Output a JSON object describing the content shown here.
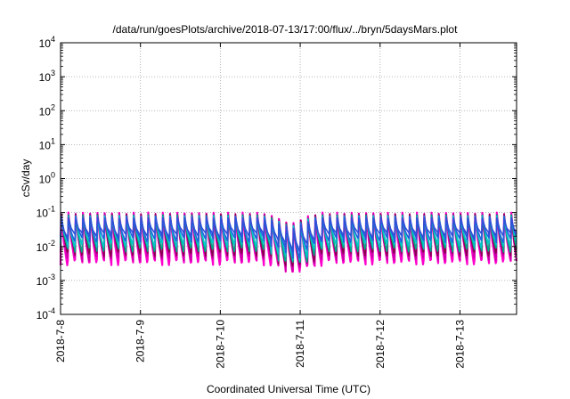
{
  "chart_data": {
    "type": "line",
    "title": "/data/run/goesPlots/archive/2018-07-13/17:00/flux/../bryn/5daysMars.plot",
    "xlabel": "Coordinated Universal Time (UTC)",
    "ylabel": "cSv/day",
    "y_scale": "log",
    "ylim": [
      0.0001,
      10000
    ],
    "y_ticks": [
      {
        "base": "10",
        "exp": "-4",
        "value": 0.0001
      },
      {
        "base": "10",
        "exp": "-3",
        "value": 0.001
      },
      {
        "base": "10",
        "exp": "-2",
        "value": 0.01
      },
      {
        "base": "10",
        "exp": "-1",
        "value": 0.1
      },
      {
        "base": "10",
        "exp": "0",
        "value": 1
      },
      {
        "base": "10",
        "exp": "1",
        "value": 10
      },
      {
        "base": "10",
        "exp": "2",
        "value": 100
      },
      {
        "base": "10",
        "exp": "3",
        "value": 1000
      },
      {
        "base": "10",
        "exp": "4",
        "value": 10000
      }
    ],
    "x_ticks": [
      "2018-7-8",
      "2018-7-9",
      "2018-7-10",
      "2018-7-11",
      "2018-7-12",
      "2018-7-13"
    ],
    "xlim": [
      "2018-07-08",
      "2018-07-13 17:00"
    ],
    "grid": true,
    "grid_style": "dotted",
    "legend": "none",
    "pattern": {
      "teeth_per_day": 11,
      "peak_min": 0.08,
      "peak_max": 0.1,
      "dip_event": {
        "date": "2018-07-10 21:00",
        "min_value": 0.0015
      }
    },
    "series": [
      {
        "color": "#ff00cc",
        "peak": 0.1,
        "base": 0.0035
      },
      {
        "color": "#cc00aa",
        "peak": 0.095,
        "base": 0.0045
      },
      {
        "color": "#8a0050",
        "peak": 0.09,
        "base": 0.006
      },
      {
        "color": "#00aa88",
        "peak": 0.085,
        "base": 0.008
      },
      {
        "color": "#00c8c8",
        "peak": 0.08,
        "base": 0.011
      },
      {
        "color": "#2060e0",
        "peak": 0.075,
        "base": 0.016
      },
      {
        "color": "#3050d8",
        "peak": 0.07,
        "base": 0.022
      }
    ]
  }
}
